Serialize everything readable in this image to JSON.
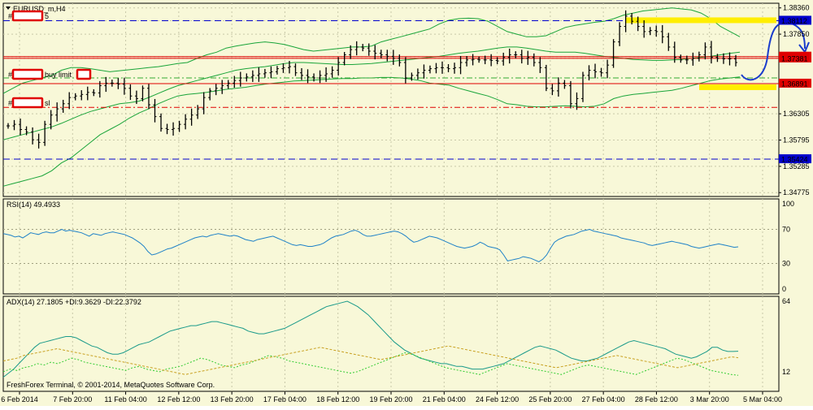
{
  "window": {
    "title": "EURUSD_m,H4"
  },
  "colors": {
    "bg": "#f8f8d8",
    "panel_border": "#000000",
    "grid": "#c8c8a8",
    "bars": "#000000",
    "bollinger": "#1aa53a",
    "red_level": "#e00000",
    "blue_level": "#0000cc",
    "green_dash": "#33aa33",
    "highlight": "#ffee00",
    "arrow": "#1a3ccc",
    "rsi_line": "#1f82c8",
    "adx_line": "#1a9a8a",
    "pdi_line": "#33cc33",
    "mdi_line": "#c8a020",
    "label_box": "#e00000"
  },
  "annotations": {
    "labels": [
      {
        "text": "#",
        "redacted": true,
        "suffix": "5"
      },
      {
        "text": "#",
        "redacted": true,
        "suffix": "buy limit"
      },
      {
        "text": "#",
        "redacted": true,
        "suffix": "sl"
      }
    ]
  },
  "footer": {
    "copyright": "FreshForex Terminal, © 2001-2014, MetaQuotes Software Corp."
  },
  "chart_data": [
    {
      "type": "candlestick",
      "title": "EURUSD_m,H4",
      "ylim": [
        1.347,
        1.3845
      ],
      "price_ticks": [
        "1.38360",
        "1.38112",
        "1.37850",
        "1.37415",
        "1.37381",
        "1.36891",
        "1.36305",
        "1.35795",
        "1.35424",
        "1.35285",
        "1.34775"
      ],
      "time_labels": [
        "6 Feb 2014",
        "7 Feb 20:00",
        "11 Feb 04:00",
        "12 Feb 12:00",
        "13 Feb 20:00",
        "17 Feb 04:00",
        "18 Feb 12:00",
        "19 Feb 20:00",
        "21 Feb 04:00",
        "24 Feb 12:00",
        "25 Feb 20:00",
        "27 Feb 04:00",
        "28 Feb 12:00",
        "3 Mar 20:00",
        "5 Mar 04:00"
      ],
      "levels": [
        {
          "name": "upper-red",
          "price": 1.37415,
          "style": "solid",
          "color": "#e00000",
          "label": "1.37415"
        },
        {
          "name": "mid-red",
          "price": 1.37381,
          "style": "solid",
          "color": "#e00000",
          "label": "1.37381"
        },
        {
          "name": "buy-limit",
          "price": 1.36891,
          "style": "solid",
          "color": "#e00000",
          "label": "1.36891"
        },
        {
          "name": "top-blue",
          "price": 1.38112,
          "style": "dash",
          "color": "#0000cc",
          "label": "1.38112"
        },
        {
          "name": "bottom-blue",
          "price": 1.35424,
          "style": "dash",
          "color": "#0000cc",
          "label": "1.35424"
        },
        {
          "name": "sl-red-dash",
          "price": 1.3643,
          "style": "dashdot",
          "color": "#e00000",
          "label": ""
        },
        {
          "name": "green-dash",
          "price": 1.37,
          "style": "dashdot",
          "color": "#33aa33",
          "label": ""
        }
      ],
      "closes": [
        1.3607,
        1.361,
        1.36,
        1.3595,
        1.358,
        1.3575,
        1.361,
        1.3628,
        1.364,
        1.365,
        1.3662,
        1.3665,
        1.3668,
        1.3672,
        1.3671,
        1.3685,
        1.369,
        1.369,
        1.3688,
        1.368,
        1.3665,
        1.366,
        1.368,
        1.3648,
        1.3625,
        1.3602,
        1.36,
        1.3602,
        1.361,
        1.362,
        1.3628,
        1.364,
        1.3662,
        1.3675,
        1.368,
        1.3685,
        1.369,
        1.3695,
        1.37,
        1.3702,
        1.3705,
        1.3708,
        1.371,
        1.3712,
        1.3718,
        1.372,
        1.3722,
        1.371,
        1.3705,
        1.3702,
        1.37,
        1.3705,
        1.3708,
        1.3715,
        1.373,
        1.3745,
        1.3755,
        1.376,
        1.3758,
        1.3752,
        1.3748,
        1.3745,
        1.3742,
        1.3738,
        1.373,
        1.37,
        1.3705,
        1.371,
        1.3715,
        1.3718,
        1.372,
        1.372,
        1.3718,
        1.372,
        1.373,
        1.3735,
        1.3736,
        1.3735,
        1.3735,
        1.3734,
        1.3733,
        1.374,
        1.3745,
        1.3745,
        1.3738,
        1.374,
        1.373,
        1.372,
        1.368,
        1.3675,
        1.369,
        1.3685,
        1.365,
        1.366,
        1.3705,
        1.3715,
        1.3712,
        1.371,
        1.3725,
        1.377,
        1.38,
        1.382,
        1.381,
        1.38,
        1.379,
        1.3792,
        1.379,
        1.378,
        1.376,
        1.374,
        1.3735,
        1.3735,
        1.3738,
        1.3745,
        1.376,
        1.374,
        1.3738,
        1.3737,
        1.3737,
        1.373
      ],
      "bollinger_upper": [
        1.367,
        1.368,
        1.369,
        1.3695,
        1.37,
        1.3705,
        1.3715,
        1.372,
        1.372,
        1.3718,
        1.3715,
        1.3712,
        1.3714,
        1.3716,
        1.3718,
        1.372,
        1.3722,
        1.3725,
        1.3728,
        1.373,
        1.3738,
        1.3745,
        1.375,
        1.3758,
        1.3762,
        1.3765,
        1.3768,
        1.377,
        1.3768,
        1.3765,
        1.376,
        1.3755,
        1.3752,
        1.3754,
        1.3756,
        1.3758,
        1.376,
        1.376,
        1.3762,
        1.377,
        1.3775,
        1.378,
        1.3785,
        1.379,
        1.3795,
        1.3805,
        1.3812,
        1.3815,
        1.3816,
        1.3815,
        1.381,
        1.38,
        1.379,
        1.3785,
        1.378,
        1.378,
        1.3782,
        1.379,
        1.3798,
        1.3802,
        1.3805,
        1.3808,
        1.381,
        1.3815,
        1.3822,
        1.3826,
        1.383,
        1.3832,
        1.3834,
        1.3836,
        1.3834,
        1.3832,
        1.3826,
        1.3815,
        1.38,
        1.379,
        1.378
      ],
      "bollinger_middle": [
        1.358,
        1.3585,
        1.359,
        1.3595,
        1.36,
        1.3605,
        1.3612,
        1.362,
        1.3628,
        1.3635,
        1.364,
        1.3645,
        1.365,
        1.3652,
        1.3655,
        1.3662,
        1.367,
        1.3678,
        1.3685,
        1.369,
        1.3695,
        1.37,
        1.3705,
        1.371,
        1.3715,
        1.3718,
        1.372,
        1.3722,
        1.3725,
        1.3728,
        1.373,
        1.373,
        1.3729,
        1.3728,
        1.3727,
        1.3726,
        1.3726,
        1.3727,
        1.3728,
        1.373,
        1.3732,
        1.3734,
        1.3736,
        1.3738,
        1.374,
        1.3742,
        1.3745,
        1.3748,
        1.375,
        1.3752,
        1.3755,
        1.3758,
        1.376,
        1.376,
        1.3758,
        1.3755,
        1.3752,
        1.375,
        1.375,
        1.375,
        1.3748,
        1.3745,
        1.3742,
        1.374,
        1.3738,
        1.3736,
        1.3735,
        1.3734,
        1.3734,
        1.3735,
        1.3736,
        1.3738,
        1.374,
        1.3742,
        1.3745,
        1.3748,
        1.375
      ],
      "bollinger_lower": [
        1.349,
        1.3495,
        1.35,
        1.3505,
        1.351,
        1.352,
        1.3535,
        1.3545,
        1.356,
        1.3575,
        1.359,
        1.36,
        1.361,
        1.3622,
        1.3632,
        1.364,
        1.365,
        1.3658,
        1.3665,
        1.3668,
        1.367,
        1.3672,
        1.3675,
        1.3678,
        1.368,
        1.3682,
        1.3685,
        1.3688,
        1.369,
        1.3692,
        1.3694,
        1.3695,
        1.3696,
        1.3697,
        1.3698,
        1.3699,
        1.3699,
        1.37,
        1.37,
        1.3701,
        1.3701,
        1.37,
        1.3698,
        1.3695,
        1.369,
        1.3688,
        1.3686,
        1.368,
        1.3675,
        1.367,
        1.3665,
        1.3658,
        1.365,
        1.3648,
        1.3645,
        1.3644,
        1.3644,
        1.3645,
        1.3646,
        1.3645,
        1.3644,
        1.3645,
        1.365,
        1.366,
        1.3665,
        1.3668,
        1.367,
        1.3672,
        1.3674,
        1.3676,
        1.368,
        1.3685,
        1.369,
        1.3695,
        1.3698,
        1.37,
        1.3702
      ]
    },
    {
      "type": "line",
      "title": "RSI(14) 49.4933",
      "ylim": [
        0,
        100
      ],
      "ticks": [
        "100",
        "70",
        "30",
        "0"
      ],
      "levels": [
        70,
        30
      ],
      "values": [
        65,
        64,
        63,
        61,
        62,
        60,
        63,
        66,
        65,
        64,
        66,
        67,
        66,
        66,
        68,
        70,
        68,
        69,
        68,
        67,
        66,
        64,
        62,
        65,
        64,
        63,
        65,
        66,
        67,
        66,
        65,
        64,
        62,
        60,
        57,
        54,
        50,
        44,
        40,
        41,
        43,
        45,
        47,
        48,
        50,
        52,
        54,
        56,
        58,
        60,
        61,
        62,
        61,
        63,
        64,
        65,
        64,
        63,
        62,
        63,
        62,
        60,
        58,
        57,
        56,
        58,
        59,
        60,
        61,
        62,
        60,
        58,
        56,
        54,
        52,
        51,
        52,
        51,
        50,
        50,
        51,
        52,
        54,
        57,
        60,
        62,
        63,
        64,
        66,
        68,
        69,
        67,
        64,
        62,
        62,
        63,
        64,
        65,
        66,
        67,
        68,
        67,
        65,
        62,
        58,
        55,
        56,
        58,
        60,
        62,
        61,
        60,
        58,
        56,
        54,
        52,
        50,
        49,
        48,
        49,
        50,
        52,
        55,
        53,
        50,
        49,
        48,
        46,
        40,
        33,
        34,
        35,
        36,
        38,
        37,
        36,
        34,
        32,
        35,
        40,
        48,
        55,
        58,
        60,
        62,
        63,
        64,
        66,
        68,
        69,
        70,
        68,
        67,
        66,
        65,
        64,
        63,
        62,
        60,
        59,
        58,
        57,
        56,
        55,
        54,
        52,
        51,
        52,
        53,
        54,
        55,
        56,
        55,
        54,
        53,
        52,
        50,
        49,
        48,
        49,
        50,
        51,
        52,
        53,
        52,
        51,
        50,
        49,
        49.4933
      ]
    },
    {
      "type": "line",
      "title": "ADX(14) 27.1805 +DI:9.3629 -DI:22.3792",
      "ylim": [
        0,
        64
      ],
      "ticks": [
        "64",
        "12"
      ],
      "series": [
        {
          "name": "ADX(14)",
          "values": [
            8,
            11,
            14,
            18,
            22,
            26,
            30,
            33,
            34,
            35,
            36,
            37,
            38,
            38,
            37,
            35,
            33,
            31,
            30,
            28,
            26,
            25,
            25,
            26,
            28,
            30,
            32,
            33,
            34,
            36,
            38,
            40,
            42,
            43,
            44,
            45,
            46,
            46,
            47,
            48,
            49,
            49,
            48,
            47,
            46,
            45,
            44,
            42,
            41,
            40,
            40,
            41,
            42,
            43,
            44,
            46,
            48,
            50,
            52,
            54,
            56,
            58,
            60,
            61,
            62,
            63,
            64,
            62,
            60,
            57,
            54,
            50,
            46,
            42,
            38,
            34,
            31,
            28,
            26,
            24,
            22,
            21,
            20,
            19,
            18,
            18,
            17,
            16,
            16,
            15,
            14,
            14,
            14,
            15,
            16,
            17,
            18,
            20,
            22,
            24,
            26,
            28,
            30,
            31,
            30,
            29,
            28,
            26,
            24,
            22,
            21,
            20,
            20,
            21,
            22,
            24,
            26,
            28,
            30,
            32,
            34,
            35,
            34,
            33,
            32,
            31,
            30,
            29,
            27,
            25,
            24,
            23,
            22,
            23,
            25,
            27,
            30,
            30,
            28,
            27,
            27,
            27.1805
          ]
        },
        {
          "name": "+DI",
          "values": [
            12,
            14,
            13,
            15,
            16,
            18,
            17,
            19,
            18,
            20,
            22,
            21,
            19,
            18,
            17,
            16,
            15,
            14,
            13,
            15,
            16,
            14,
            13,
            12,
            14,
            15,
            16,
            18,
            20,
            22,
            21,
            19,
            17,
            16,
            15,
            17,
            18,
            20,
            22,
            24,
            23,
            22,
            20,
            19,
            18,
            17,
            16,
            15,
            14,
            13,
            12,
            11,
            12,
            14,
            16,
            18,
            20,
            22,
            24,
            26,
            25,
            23,
            21,
            19,
            17,
            15,
            14,
            13,
            12,
            11,
            10,
            12,
            14,
            16,
            18,
            17,
            16,
            15,
            14,
            13,
            12,
            11,
            10,
            12,
            14,
            16,
            17,
            16,
            15,
            14,
            13,
            12,
            11,
            10,
            12,
            14,
            16,
            18,
            20,
            22,
            21,
            19,
            17,
            15,
            13,
            12,
            11,
            10,
            9.3629
          ]
        },
        {
          "name": "-DI",
          "values": [
            20,
            21,
            22,
            24,
            25,
            26,
            27,
            28,
            29,
            28,
            27,
            26,
            25,
            24,
            23,
            22,
            21,
            20,
            19,
            18,
            17,
            16,
            15,
            14,
            13,
            12,
            11,
            10,
            11,
            12,
            13,
            14,
            15,
            16,
            17,
            18,
            19,
            20,
            21,
            22,
            23,
            24,
            25,
            26,
            27,
            28,
            29,
            30,
            29,
            28,
            27,
            26,
            25,
            24,
            23,
            22,
            21,
            22,
            23,
            24,
            25,
            26,
            27,
            28,
            29,
            30,
            31,
            30,
            29,
            28,
            27,
            26,
            25,
            24,
            23,
            22,
            21,
            20,
            19,
            18,
            17,
            16,
            15,
            16,
            17,
            18,
            19,
            20,
            21,
            22,
            23,
            24,
            23,
            22,
            21,
            20,
            19,
            18,
            17,
            16,
            15,
            16,
            17,
            18,
            19,
            20,
            21,
            22,
            23,
            22.3792
          ]
        }
      ]
    }
  ]
}
